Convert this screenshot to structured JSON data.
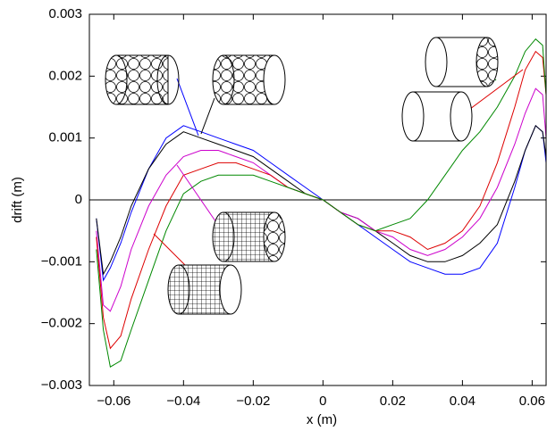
{
  "chart_data": {
    "type": "line",
    "xlabel": "x (m)",
    "ylabel": "drift (m)",
    "x": [
      -0.065,
      -0.063,
      -0.061,
      -0.058,
      -0.055,
      -0.05,
      -0.045,
      -0.04,
      -0.035,
      -0.03,
      -0.025,
      -0.02,
      -0.015,
      -0.01,
      -0.005,
      0,
      0.005,
      0.01,
      0.015,
      0.02,
      0.025,
      0.03,
      0.035,
      0.04,
      0.045,
      0.05,
      0.055,
      0.058,
      0.061,
      0.063,
      0.064
    ],
    "series": [
      {
        "color": "#0000ff",
        "values": [
          -0.0003,
          -0.0013,
          -0.0011,
          -0.0007,
          -0.0002,
          0.0005,
          0.001,
          0.0012,
          0.0011,
          0.001,
          0.0009,
          0.0008,
          0.0006,
          0.0004,
          0.0002,
          0,
          -0.0002,
          -0.0004,
          -0.0006,
          -0.0008,
          -0.001,
          -0.0011,
          -0.0012,
          -0.0012,
          -0.0011,
          -0.0007,
          0.0002,
          0.0008,
          0.0012,
          0.0011,
          0.0006
        ]
      },
      {
        "color": "#000000",
        "values": [
          -0.0003,
          -0.0012,
          -0.001,
          -0.0006,
          -0.0001,
          0.0005,
          0.0009,
          0.0011,
          0.001,
          0.0009,
          0.0008,
          0.0007,
          0.0005,
          0.0003,
          0.0001,
          0,
          -0.0002,
          -0.0003,
          -0.0005,
          -0.0007,
          -0.0009,
          -0.001,
          -0.001,
          -0.0009,
          -0.0007,
          -0.0004,
          0.0003,
          0.0008,
          0.0012,
          0.0011,
          0.0007
        ]
      },
      {
        "color": "#cc00cc",
        "values": [
          -0.0005,
          -0.0017,
          -0.0018,
          -0.0014,
          -0.0008,
          -0.0001,
          0.0004,
          0.0007,
          0.0008,
          0.0008,
          0.0007,
          0.0006,
          0.0004,
          0.0002,
          0.0001,
          0,
          -0.0002,
          -0.0003,
          -0.0005,
          -0.0006,
          -0.0008,
          -0.0009,
          -0.0008,
          -0.0006,
          -0.0003,
          0.0002,
          0.0009,
          0.0014,
          0.0018,
          0.0017,
          0.001
        ]
      },
      {
        "color": "#dd0000",
        "values": [
          -0.0006,
          -0.0019,
          -0.0024,
          -0.0022,
          -0.0016,
          -0.0008,
          -0.0001,
          0.0004,
          0.0005,
          0.0006,
          0.0006,
          0.0005,
          0.0004,
          0.0002,
          0.0001,
          0,
          -0.0002,
          -0.0004,
          -0.0005,
          -0.0005,
          -0.0006,
          -0.0008,
          -0.0007,
          -0.0005,
          -0.0001,
          0.0006,
          0.0015,
          0.0021,
          0.0024,
          0.0023,
          0.0017
        ]
      },
      {
        "color": "#008800",
        "values": [
          -0.0008,
          -0.0021,
          -0.0027,
          -0.0026,
          -0.0021,
          -0.0013,
          -0.0005,
          0.0001,
          0.0003,
          0.0004,
          0.0004,
          0.0004,
          0.0003,
          0.0002,
          0.0001,
          0,
          -0.0002,
          -0.0004,
          -0.0005,
          -0.0004,
          -0.0003,
          0,
          0.0004,
          0.0008,
          0.0011,
          0.0015,
          0.002,
          0.0024,
          0.0026,
          0.0025,
          0.0017
        ]
      }
    ],
    "xlim": [
      -0.067,
      0.064
    ],
    "xticks": [
      {
        "value": -0.06,
        "label": "−0.06"
      },
      {
        "value": -0.04,
        "label": "−0.04"
      },
      {
        "value": -0.02,
        "label": "−0.02"
      },
      0,
      0.02,
      0.04,
      0.06
    ],
    "ylim": [
      -0.003,
      0.003
    ],
    "yticks": [
      {
        "value": -0.003,
        "label": "−0.003"
      },
      {
        "value": -0.002,
        "label": "−0.002"
      },
      {
        "value": -0.001,
        "label": "−0.001"
      },
      0,
      0.001,
      0.002,
      0.003
    ],
    "grid": false
  }
}
